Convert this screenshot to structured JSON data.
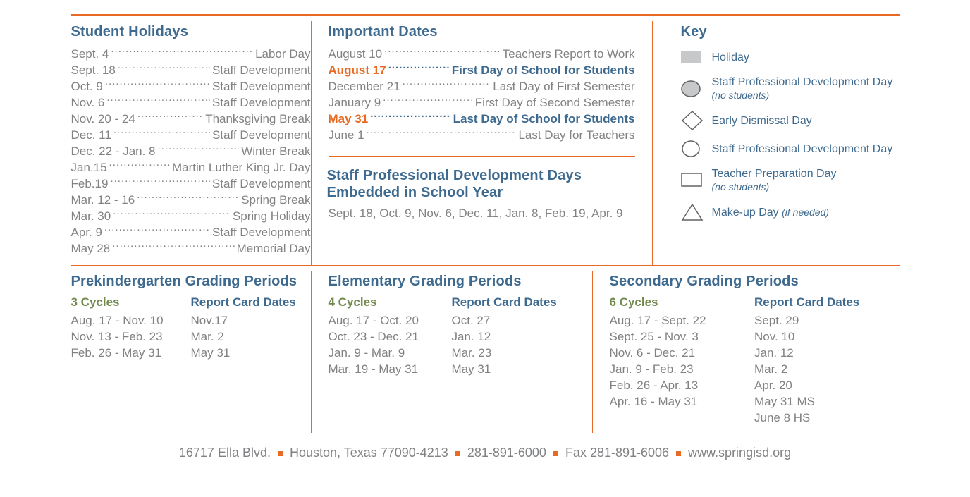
{
  "colors": {
    "orange": "#e96a24",
    "blue": "#3e6a8f",
    "gray": "#808284",
    "olive": "#72894e",
    "icon_stroke": "#606264",
    "icon_fill_gray": "#c7c8c9"
  },
  "student_holidays": {
    "title": "Student Holidays",
    "items": [
      {
        "l": "Sept. 4",
        "r": "Labor Day"
      },
      {
        "l": "Sept. 18",
        "r": "Staff Development"
      },
      {
        "l": "Oct. 9",
        "r": "Staff Development"
      },
      {
        "l": "Nov. 6",
        "r": "Staff Development"
      },
      {
        "l": "Nov. 20 - 24",
        "r": "Thanksgiving Break"
      },
      {
        "l": "Dec. 11",
        "r": "Staff Development"
      },
      {
        "l": "Dec. 22 - Jan. 8",
        "r": "Winter Break"
      },
      {
        "l": "Jan.15",
        "r": "Martin Luther King Jr. Day"
      },
      {
        "l": "Feb.19",
        "r": "Staff Development"
      },
      {
        "l": "Mar. 12 - 16",
        "r": "Spring Break"
      },
      {
        "l": "Mar. 30",
        "r": "Spring Holiday"
      },
      {
        "l": "Apr. 9",
        "r": "Staff Development"
      },
      {
        "l": "May 28",
        "r": "Memorial Day"
      }
    ]
  },
  "important_dates": {
    "title": "Important Dates",
    "items": [
      {
        "l": "August 10",
        "r": "Teachers Report to Work",
        "bold": false,
        "color": "gray"
      },
      {
        "l": "August 17",
        "r": "First Day of School for Students",
        "bold": true,
        "color": "orange"
      },
      {
        "l": "December 21",
        "r": "Last Day of First Semester",
        "bold": false,
        "color": "gray"
      },
      {
        "l": "January 9",
        "r": "First Day of Second Semester",
        "bold": false,
        "color": "gray"
      },
      {
        "l": "May 31",
        "r": "Last Day of School for Students",
        "bold": true,
        "color": "orange"
      },
      {
        "l": "June 1",
        "r": "Last Day for Teachers",
        "bold": false,
        "color": "gray"
      }
    ]
  },
  "staff_pd": {
    "title": "Staff Professional Development Days Embedded in School Year",
    "body": "Sept. 18, Oct. 9, Nov. 6, Dec. 11, Jan. 8, Feb. 19, Apr. 9"
  },
  "key": {
    "title": "Key",
    "items": [
      {
        "icon": "holiday",
        "label": "Holiday",
        "sub": ""
      },
      {
        "icon": "circle-filled",
        "label": "Staff Professional Development Day",
        "sub": "(no students)"
      },
      {
        "icon": "diamond",
        "label": "Early Dismissal Day",
        "sub": ""
      },
      {
        "icon": "circle",
        "label": "Staff Professional Development Day",
        "sub": ""
      },
      {
        "icon": "square",
        "label": "Teacher Preparation Day",
        "sub": "(no students)"
      },
      {
        "icon": "triangle",
        "label": "Make-up Day",
        "sub_inline": "(if needed)"
      }
    ]
  },
  "grading": {
    "pk": {
      "title": "Prekindergarten Grading Periods",
      "cycles_head": "3 Cycles",
      "report_head": "Report Card Dates",
      "cycles": [
        "Aug. 17 - Nov. 10",
        "Nov. 13 - Feb. 23",
        "Feb. 26 - May 31"
      ],
      "reports": [
        "Nov.17",
        "Mar. 2",
        "May 31"
      ]
    },
    "elem": {
      "title": "Elementary Grading Periods",
      "cycles_head": "4 Cycles",
      "report_head": "Report Card Dates",
      "cycles": [
        "Aug. 17 - Oct. 20",
        "Oct. 23 - Dec. 21",
        "Jan. 9 - Mar. 9",
        "Mar. 19  - May 31"
      ],
      "reports": [
        "Oct. 27",
        "Jan. 12",
        "Mar. 23",
        "May 31"
      ]
    },
    "sec": {
      "title": "Secondary Grading Periods",
      "cycles_head": "6 Cycles",
      "report_head": "Report Card Dates",
      "cycles": [
        "Aug. 17 - Sept. 22",
        "Sept. 25 - Nov. 3",
        "Nov. 6 - Dec. 21",
        "Jan. 9 - Feb. 23",
        "Feb. 26 - Apr. 13",
        "Apr. 16 - May 31"
      ],
      "reports": [
        "Sept. 29",
        "Nov. 10",
        "Jan. 12",
        "Mar. 2",
        "Apr. 20",
        "May 31 MS",
        "June 8 HS"
      ]
    }
  },
  "footer": {
    "parts": [
      "16717 Ella Blvd.",
      "Houston, Texas 77090-4213",
      "281-891-6000",
      "Fax 281-891-6006",
      "www.springisd.org"
    ]
  }
}
